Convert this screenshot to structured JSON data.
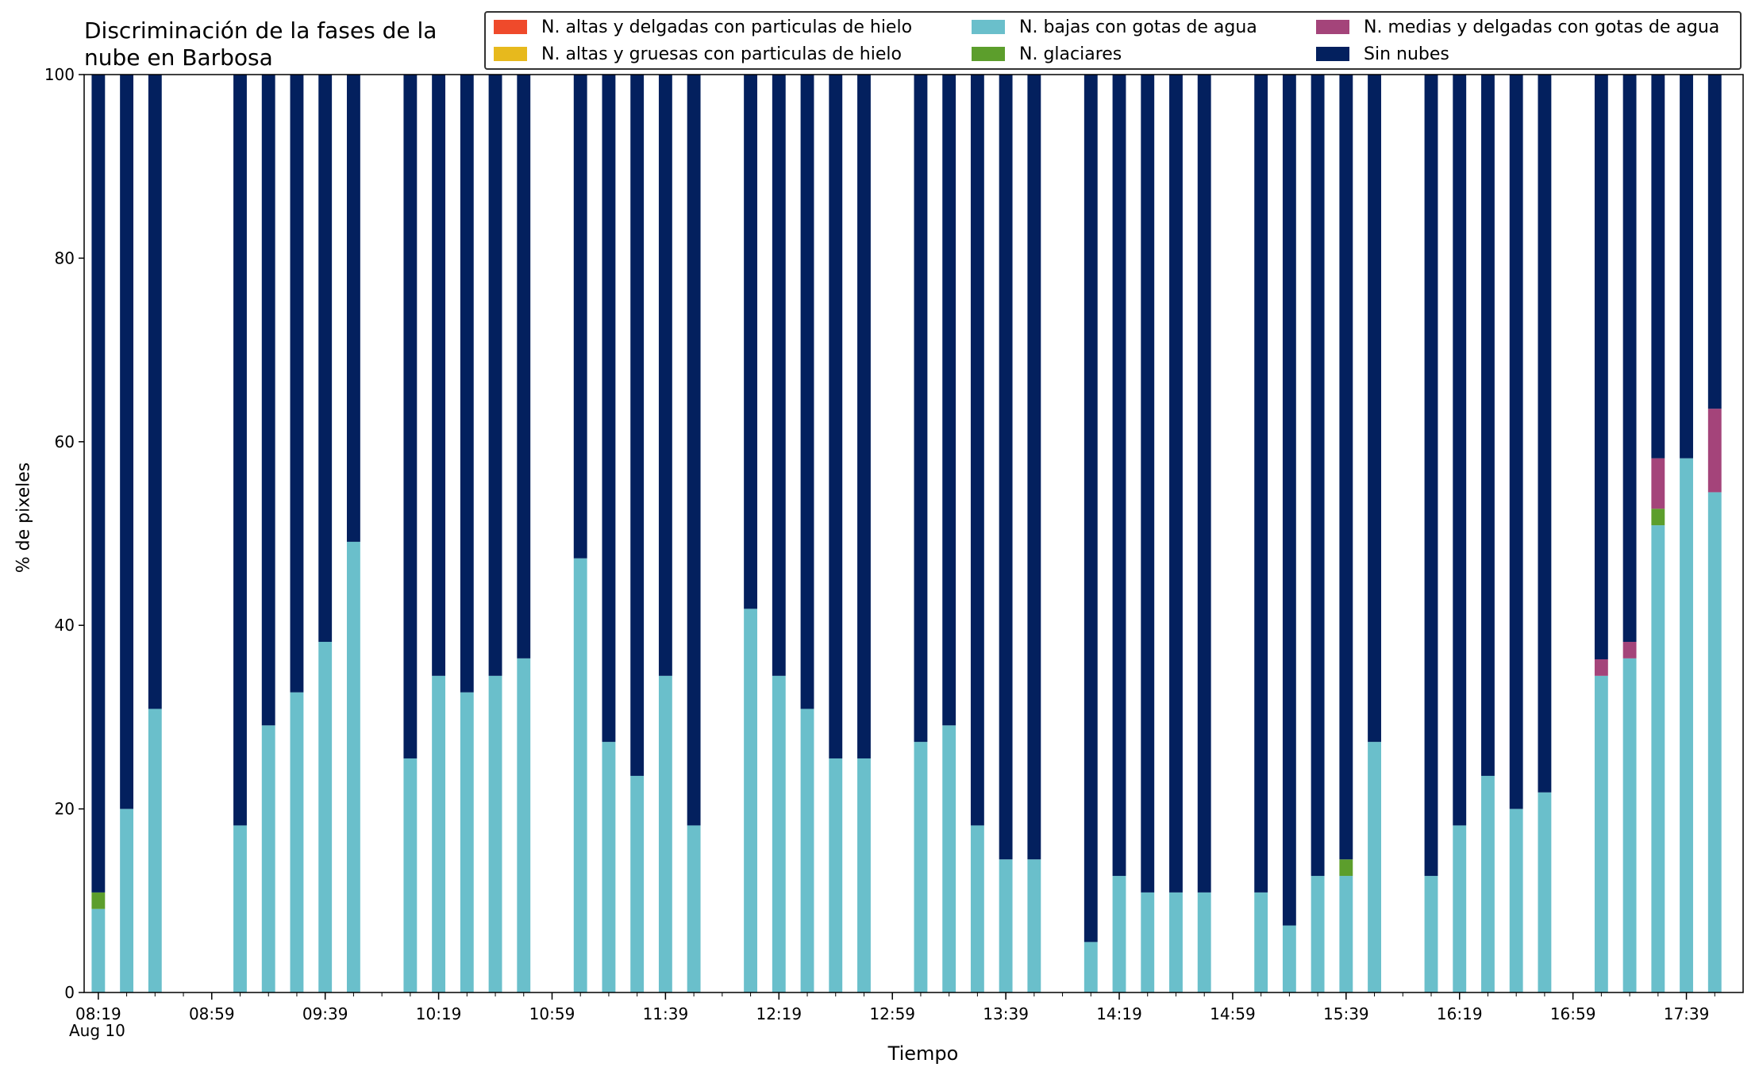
{
  "chart_data": {
    "type": "bar",
    "stacked": true,
    "title": "Discriminación de la fases de la\nnube en Barbosa",
    "xlabel": "Tiempo",
    "ylabel": "% de pixeles",
    "ylim": [
      0,
      100
    ],
    "yticks": [
      0,
      20,
      40,
      60,
      80,
      100
    ],
    "xticks": [
      "08:19",
      "08:59",
      "09:39",
      "10:19",
      "10:59",
      "11:39",
      "12:19",
      "12:59",
      "13:39",
      "14:19",
      "14:59",
      "15:39",
      "16:19",
      "16:59",
      "17:39"
    ],
    "date_label": "Aug 10",
    "legend": {
      "placement": "top-right",
      "columns": 3
    },
    "colors": {
      "alta_delgada_hielo": "#ef4a2b",
      "alta_gruesa_hielo": "#e7b91d",
      "bajas_agua": "#6abfcb",
      "glaciares": "#5c9e2c",
      "medias_agua": "#a4447a",
      "sin_nubes": "#03205e"
    },
    "series": [
      {
        "name": "N. altas y delgadas con particulas de hielo",
        "key": "alta_delgada_hielo"
      },
      {
        "name": "N. altas y gruesas con particulas de hielo",
        "key": "alta_gruesa_hielo"
      },
      {
        "name": "N. bajas con gotas de agua",
        "key": "bajas_agua"
      },
      {
        "name": "N. glaciares",
        "key": "glaciares"
      },
      {
        "name": "N. medias y delgadas con gotas de agua",
        "key": "medias_agua"
      },
      {
        "name": "Sin nubes",
        "key": "sin_nubes"
      }
    ],
    "x": [
      "08:19",
      "08:29",
      "08:39",
      "09:09",
      "09:19",
      "09:29",
      "09:39",
      "09:49",
      "10:09",
      "10:19",
      "10:29",
      "10:39",
      "10:49",
      "11:09",
      "11:19",
      "11:29",
      "11:39",
      "11:49",
      "12:09",
      "12:19",
      "12:29",
      "12:39",
      "12:49",
      "13:09",
      "13:19",
      "13:29",
      "13:39",
      "13:49",
      "14:09",
      "14:19",
      "14:29",
      "14:39",
      "14:49",
      "15:09",
      "15:19",
      "15:29",
      "15:39",
      "15:49",
      "16:09",
      "16:19",
      "16:29",
      "16:39",
      "16:49",
      "17:09",
      "17:19",
      "17:29",
      "17:39",
      "17:49"
    ],
    "bars": [
      {
        "bajas_agua": 9.1,
        "glaciares": 1.8,
        "medias_agua": 0
      },
      {
        "bajas_agua": 20.0,
        "glaciares": 0,
        "medias_agua": 0
      },
      {
        "bajas_agua": 30.9,
        "glaciares": 0,
        "medias_agua": 0
      },
      {
        "bajas_agua": 18.2,
        "glaciares": 0,
        "medias_agua": 0
      },
      {
        "bajas_agua": 29.1,
        "glaciares": 0,
        "medias_agua": 0
      },
      {
        "bajas_agua": 32.7,
        "glaciares": 0,
        "medias_agua": 0
      },
      {
        "bajas_agua": 38.2,
        "glaciares": 0,
        "medias_agua": 0
      },
      {
        "bajas_agua": 49.1,
        "glaciares": 0,
        "medias_agua": 0
      },
      {
        "bajas_agua": 25.5,
        "glaciares": 0,
        "medias_agua": 0
      },
      {
        "bajas_agua": 34.5,
        "glaciares": 0,
        "medias_agua": 0
      },
      {
        "bajas_agua": 32.7,
        "glaciares": 0,
        "medias_agua": 0
      },
      {
        "bajas_agua": 34.5,
        "glaciares": 0,
        "medias_agua": 0
      },
      {
        "bajas_agua": 36.4,
        "glaciares": 0,
        "medias_agua": 0
      },
      {
        "bajas_agua": 47.3,
        "glaciares": 0,
        "medias_agua": 0
      },
      {
        "bajas_agua": 27.3,
        "glaciares": 0,
        "medias_agua": 0
      },
      {
        "bajas_agua": 23.6,
        "glaciares": 0,
        "medias_agua": 0
      },
      {
        "bajas_agua": 34.5,
        "glaciares": 0,
        "medias_agua": 0
      },
      {
        "bajas_agua": 18.2,
        "glaciares": 0,
        "medias_agua": 0
      },
      {
        "bajas_agua": 41.8,
        "glaciares": 0,
        "medias_agua": 0
      },
      {
        "bajas_agua": 34.5,
        "glaciares": 0,
        "medias_agua": 0
      },
      {
        "bajas_agua": 30.9,
        "glaciares": 0,
        "medias_agua": 0
      },
      {
        "bajas_agua": 25.5,
        "glaciares": 0,
        "medias_agua": 0
      },
      {
        "bajas_agua": 25.5,
        "glaciares": 0,
        "medias_agua": 0
      },
      {
        "bajas_agua": 27.3,
        "glaciares": 0,
        "medias_agua": 0
      },
      {
        "bajas_agua": 29.1,
        "glaciares": 0,
        "medias_agua": 0
      },
      {
        "bajas_agua": 18.2,
        "glaciares": 0,
        "medias_agua": 0
      },
      {
        "bajas_agua": 14.5,
        "glaciares": 0,
        "medias_agua": 0
      },
      {
        "bajas_agua": 14.5,
        "glaciares": 0,
        "medias_agua": 0
      },
      {
        "bajas_agua": 5.5,
        "glaciares": 0,
        "medias_agua": 0
      },
      {
        "bajas_agua": 12.7,
        "glaciares": 0,
        "medias_agua": 0
      },
      {
        "bajas_agua": 10.9,
        "glaciares": 0,
        "medias_agua": 0
      },
      {
        "bajas_agua": 10.9,
        "glaciares": 0,
        "medias_agua": 0
      },
      {
        "bajas_agua": 10.9,
        "glaciares": 0,
        "medias_agua": 0
      },
      {
        "bajas_agua": 10.9,
        "glaciares": 0,
        "medias_agua": 0
      },
      {
        "bajas_agua": 7.3,
        "glaciares": 0,
        "medias_agua": 0
      },
      {
        "bajas_agua": 12.7,
        "glaciares": 0,
        "medias_agua": 0
      },
      {
        "bajas_agua": 12.7,
        "glaciares": 1.8,
        "medias_agua": 0
      },
      {
        "bajas_agua": 27.3,
        "glaciares": 0,
        "medias_agua": 0
      },
      {
        "bajas_agua": 12.7,
        "glaciares": 0,
        "medias_agua": 0
      },
      {
        "bajas_agua": 18.2,
        "glaciares": 0,
        "medias_agua": 0
      },
      {
        "bajas_agua": 23.6,
        "glaciares": 0,
        "medias_agua": 0
      },
      {
        "bajas_agua": 20.0,
        "glaciares": 0,
        "medias_agua": 0
      },
      {
        "bajas_agua": 21.8,
        "glaciares": 0,
        "medias_agua": 0
      },
      {
        "bajas_agua": 34.5,
        "glaciares": 0,
        "medias_agua": 1.8
      },
      {
        "bajas_agua": 36.4,
        "glaciares": 0,
        "medias_agua": 1.8
      },
      {
        "bajas_agua": 50.9,
        "glaciares": 1.8,
        "medias_agua": 5.5
      },
      {
        "bajas_agua": 58.2,
        "glaciares": 0,
        "medias_agua": 0
      },
      {
        "bajas_agua": 54.5,
        "glaciares": 0,
        "medias_agua": 9.1
      }
    ]
  }
}
